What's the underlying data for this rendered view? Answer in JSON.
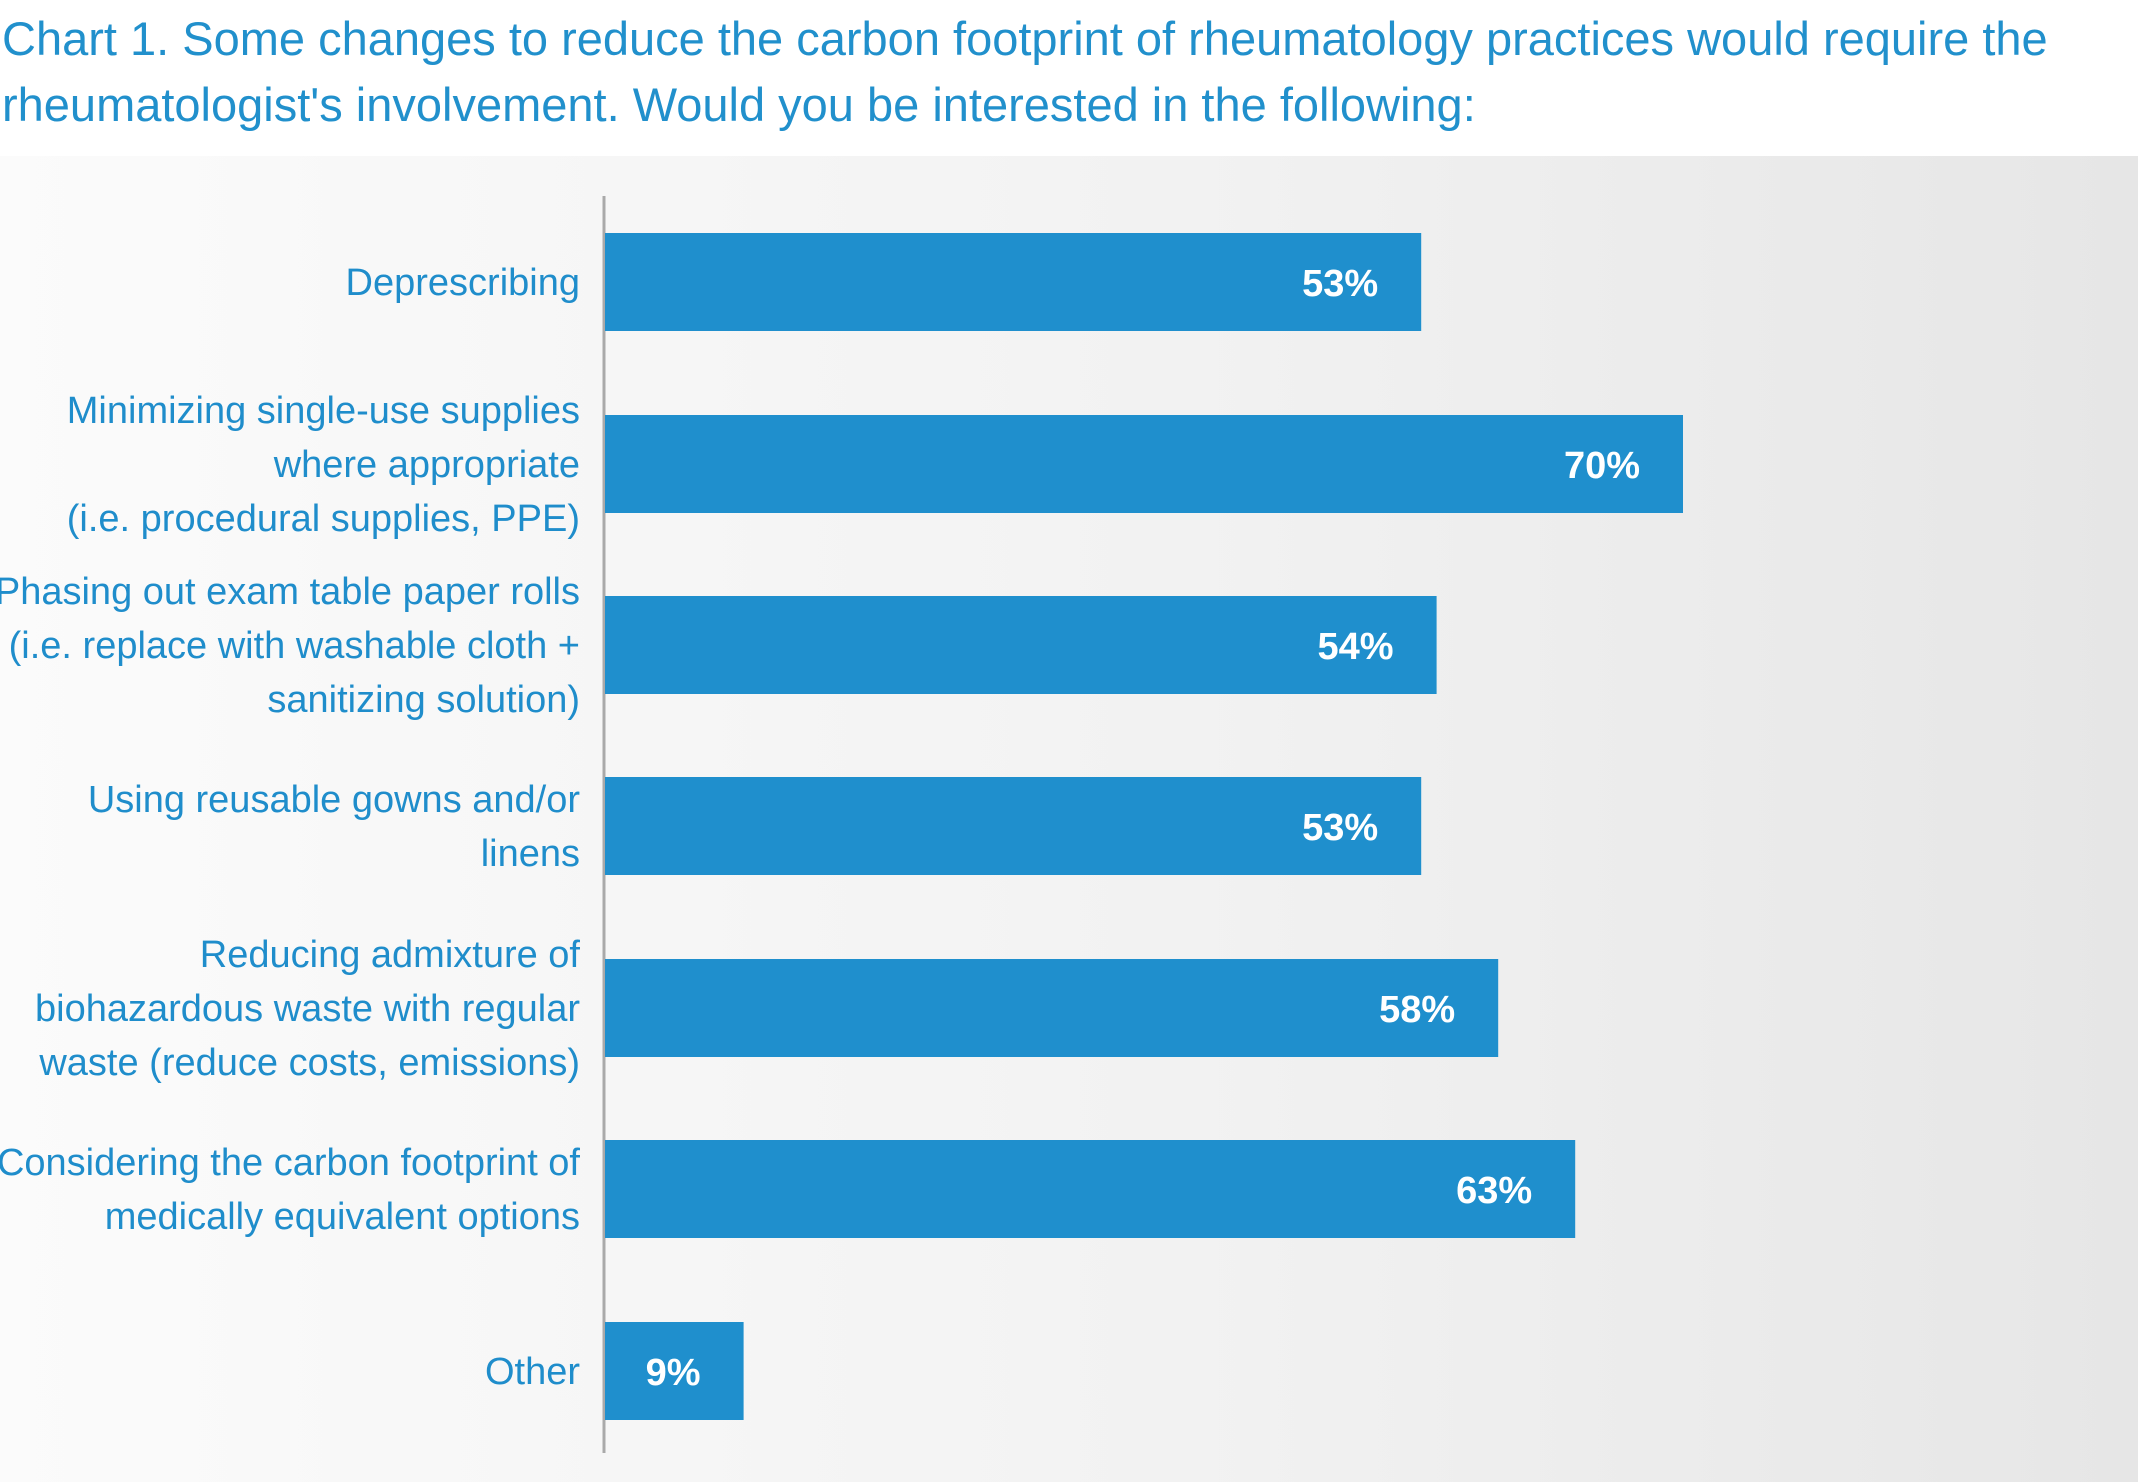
{
  "chart_data": {
    "type": "bar",
    "orientation": "horizontal",
    "title": "Chart 1. Some changes to reduce the carbon footprint of rheumatology practices would require the rheumatologist's involvement. Would you be interested in the following:",
    "categories": [
      [
        "Deprescribing"
      ],
      [
        "Minimizing single-use supplies",
        "where appropriate",
        "(i.e. procedural supplies, PPE)"
      ],
      [
        "Phasing out exam table paper rolls",
        "(i.e. replace with washable cloth +",
        "sanitizing solution)"
      ],
      [
        "Using reusable gowns and/or",
        "linens"
      ],
      [
        "Reducing admixture of",
        "biohazardous waste with regular",
        "waste (reduce costs, emissions)"
      ],
      [
        "Considering the carbon footprint of",
        "medically equivalent options"
      ],
      [
        "Other"
      ]
    ],
    "values": [
      53,
      70,
      54,
      53,
      58,
      63,
      9
    ],
    "value_labels": [
      "53%",
      "70%",
      "54%",
      "53%",
      "58%",
      "63%",
      "9%"
    ],
    "unit": "%",
    "xlim": [
      0,
      100
    ],
    "grid": false,
    "legend": "none",
    "colors": {
      "bar": "#1f8fcd",
      "title": "#2190cc",
      "category_text": "#1f8dcb",
      "value_text": "#ffffff",
      "axis": "#a9a9a9"
    }
  }
}
